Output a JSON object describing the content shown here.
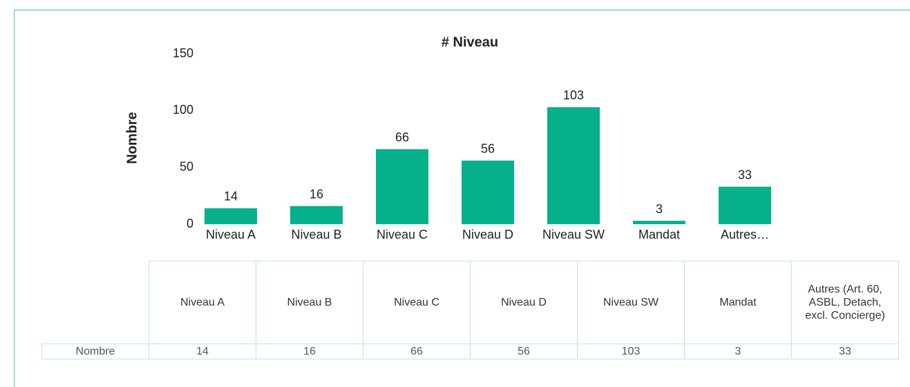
{
  "chart_data": {
    "type": "bar",
    "title": "# Niveau",
    "y_label": "Nombre",
    "categories": [
      "Niveau A",
      "Niveau B",
      "Niveau C",
      "Niveau D",
      "Niveau SW",
      "Mandat",
      "Autres…"
    ],
    "values": [
      14,
      16,
      66,
      56,
      103,
      3,
      33
    ],
    "color": "#05b08a",
    "ylim": [
      0,
      150
    ],
    "yticks": [
      0,
      50,
      100,
      150
    ],
    "grid": false
  },
  "table": {
    "header": [
      "Niveau A",
      "Niveau B",
      "Niveau C",
      "Niveau D",
      "Niveau SW",
      "Mandat",
      "Autres (Art. 60, ASBL, Detach, excl. Concierge)"
    ],
    "row_label": "Nombre"
  }
}
